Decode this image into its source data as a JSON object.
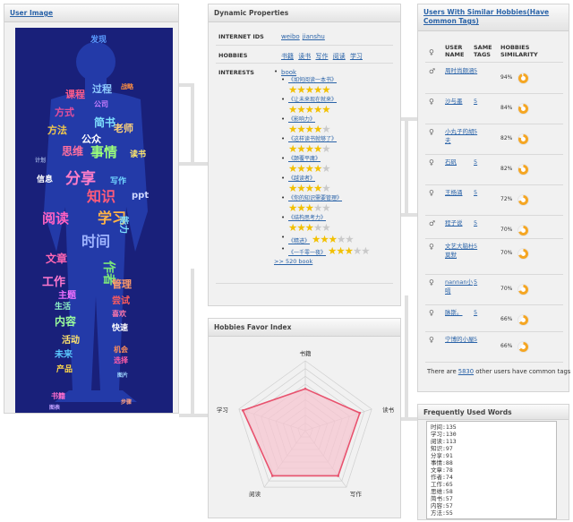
{
  "user_image": {
    "title": "User Image"
  },
  "cloud_words": [
    {
      "t": "发现",
      "c": "#5a9bff"
    },
    {
      "t": "课程",
      "c": "#ff5c8a"
    },
    {
      "t": "过程",
      "c": "#8ecbff"
    },
    {
      "t": "战略",
      "c": "#ff8f40"
    },
    {
      "t": "公司",
      "c": "#c77dff"
    },
    {
      "t": "方式",
      "c": "#e24f9c"
    },
    {
      "t": "简书",
      "c": "#7fe0ff"
    },
    {
      "t": "方法",
      "c": "#f2c94c"
    },
    {
      "t": "公众",
      "c": "#ffffff"
    },
    {
      "t": "老师",
      "c": "#ffd37a"
    },
    {
      "t": "思维",
      "c": "#ff6f9e"
    },
    {
      "t": "事情",
      "c": "#9bff7a"
    },
    {
      "t": "读书",
      "c": "#ffe86b"
    },
    {
      "t": "计划",
      "c": "#9ad"
    },
    {
      "t": "分享",
      "c": "#ff7ec8"
    },
    {
      "t": "写作",
      "c": "#6fd3ff"
    },
    {
      "t": "信息",
      "c": "#fff"
    },
    {
      "t": "知识",
      "c": "#ff5b7a"
    },
    {
      "t": "ppt",
      "c": "#cfd8ff"
    },
    {
      "t": "阅读",
      "c": "#ff62c3"
    },
    {
      "t": "学习",
      "c": "#ffb347"
    },
    {
      "t": "能力",
      "c": "#7fe3ff"
    },
    {
      "t": "时间",
      "c": "#9fb4ff"
    },
    {
      "t": "文章",
      "c": "#ff66b3"
    },
    {
      "t": "作者",
      "c": "#7ae67a"
    },
    {
      "t": "工作",
      "c": "#ff78cf"
    },
    {
      "t": "管理",
      "c": "#ff9b6a"
    },
    {
      "t": "主题",
      "c": "#f06fff"
    },
    {
      "t": "生活",
      "c": "#8ff4c9"
    },
    {
      "t": "尝试",
      "c": "#ff5c5c"
    },
    {
      "t": "喜欢",
      "c": "#f7a"
    },
    {
      "t": "内容",
      "c": "#9cff9c"
    },
    {
      "t": "快速",
      "c": "#ffffff"
    },
    {
      "t": "活动",
      "c": "#ffe36b"
    },
    {
      "t": "未来",
      "c": "#5ac8ff"
    },
    {
      "t": "机会",
      "c": "#ff8e5a"
    },
    {
      "t": "选择",
      "c": "#ff5ca8"
    },
    {
      "t": "产品",
      "c": "#ffd84a"
    },
    {
      "t": "图片",
      "c": "#9fd6ff"
    },
    {
      "t": "书籍",
      "c": "#ff6fcf"
    },
    {
      "t": "图表",
      "c": "#c0a0ff"
    },
    {
      "t": "步骤",
      "c": "#ff9f7f"
    }
  ],
  "dynamic": {
    "title": "Dynamic Properties",
    "internet_ids_label": "INTERNET IDS",
    "internet_ids": [
      "weibo",
      "jianshu"
    ],
    "hobbies_label": "HOBBIES",
    "hobbies": [
      "书籍",
      "读书",
      "写作",
      "阅读",
      "学习"
    ],
    "interests_label": "INTERESTS",
    "book_label": "book",
    "books": [
      {
        "title": "《如何阅读一本书》",
        "rating": 5
      },
      {
        "title": "《让未来现在就来》",
        "rating": 5
      },
      {
        "title": "《影响力》",
        "rating": 4
      },
      {
        "title": "《这样读书就够了》",
        "rating": 4
      },
      {
        "title": "《颠覆平庸》",
        "rating": 3.5
      },
      {
        "title": "《越读者》",
        "rating": 3.5
      },
      {
        "title": "《你的知识需要管理》",
        "rating": 3
      },
      {
        "title": "《结构思考力》",
        "rating": 3
      },
      {
        "title": "《精进》",
        "rating": 2.5
      },
      {
        "title": "《一千零一夜》",
        "rating": 2.5
      }
    ],
    "more_link": ">> 520 book"
  },
  "favor": {
    "title": "Hobbies Favor Index",
    "chart_data": {
      "type": "radar",
      "categories": [
        "书籍",
        "读书",
        "写作",
        "阅读",
        "学习"
      ],
      "values": [
        0.6,
        0.82,
        0.8,
        0.8,
        0.94
      ],
      "max": 1,
      "rings": 9,
      "color": "#e8526e",
      "fill": "#f6c5d0"
    }
  },
  "similar": {
    "title": "Users With Similar Hobbies(Have Common Tags)",
    "col_name": "USER NAME",
    "col_tags": "SAME TAGS",
    "col_sim": "HOBBIES SIMILARITY",
    "users": [
      {
        "name": "周时尚颇涵",
        "gender": "♂",
        "tags": "5",
        "sim": "94%",
        "pct": 94
      },
      {
        "name": "沙与墨",
        "gender": "♀",
        "tags": "5",
        "sim": "84%",
        "pct": 84
      },
      {
        "name": "小丸子的胡夫",
        "gender": "♀",
        "tags": "5",
        "sim": "82%",
        "pct": 82
      },
      {
        "name": "石矾",
        "gender": "♀",
        "tags": "5",
        "sim": "82%",
        "pct": 82
      },
      {
        "name": "王杨涌",
        "gender": "♀",
        "tags": "5",
        "sim": "72%",
        "pct": 72
      },
      {
        "name": "程子说",
        "gender": "♂",
        "tags": "5",
        "sim": "70%",
        "pct": 70
      },
      {
        "name": "文艺大脑杜莫默",
        "gender": "♀",
        "tags": "5",
        "sim": "70%",
        "pct": 70
      },
      {
        "name": "nannan小嗝",
        "gender": "♀",
        "tags": "5",
        "sim": "70%",
        "pct": 70
      },
      {
        "name": "脉斯。",
        "gender": "♀",
        "tags": "5",
        "sim": "66%",
        "pct": 66
      },
      {
        "name": "宁博的小屋",
        "gender": "♀",
        "tags": "5",
        "sim": "66%",
        "pct": 66
      }
    ],
    "footer_pre": "There are ",
    "footer_count": "5830",
    "footer_post": " other users have common tags",
    "pie_color": "#f5a623"
  },
  "words": {
    "title": "Frequently Used Words",
    "lines": [
      "时间:135",
      "学习:130",
      "阅读:113",
      "知识:97",
      "分享:91",
      "事情:88",
      "文章:78",
      "作者:74",
      "工作:65",
      "思维:58",
      "简书:57",
      "内容:57",
      "方法:55"
    ]
  }
}
